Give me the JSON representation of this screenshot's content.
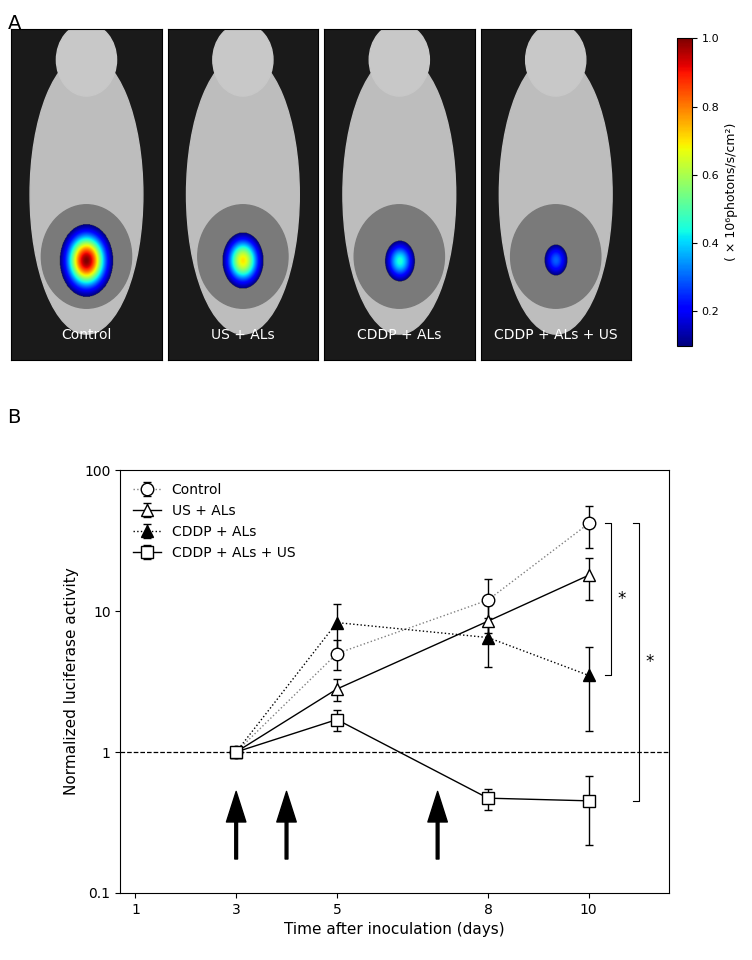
{
  "chart_data": [
    {
      "type": "image",
      "panel": "A",
      "panels": [
        {
          "label": "Control",
          "signal": 1.0
        },
        {
          "label": "US + ALs",
          "signal": 0.7
        },
        {
          "label": "CDDP + ALs",
          "signal": 0.45
        },
        {
          "label": "CDDP + ALs + US",
          "signal": 0.3
        }
      ],
      "colorbar_label": "( × 10⁶photons/s/cm²)",
      "colorbar_range": [
        0.1,
        1.0
      ],
      "colorbar_ticks": [
        0.2,
        0.4,
        0.6,
        0.8,
        {
          "value": 1,
          "label": "1.0"
        }
      ]
    },
    {
      "type": "line",
      "panel": "B",
      "log": "y",
      "legend": "upper left",
      "x_label": "Time after inoculation (days)",
      "y_label": "Normalized luciferase activity",
      "x": [
        3,
        5,
        8,
        10
      ],
      "xlim": [
        0.7,
        11.6
      ],
      "xticks": [
        1,
        3,
        5,
        8,
        10
      ],
      "ylim": [
        0.1,
        100
      ],
      "yticks": [
        0.1,
        1,
        10,
        100
      ],
      "reference_line": 1,
      "treatment_days": [
        3,
        4,
        7
      ],
      "series": [
        {
          "name": "Control",
          "color": "#808080",
          "marker": "o_open",
          "line_style": "dotted",
          "values": [
            1,
            5,
            12,
            42
          ],
          "errors": [
            0,
            1.2,
            5,
            14
          ]
        },
        {
          "name": "US + ALs",
          "color": "#000000",
          "marker": "^_open",
          "line_style": "solid",
          "values": [
            1,
            2.8,
            8.5,
            18
          ],
          "errors": [
            0,
            0.5,
            2.5,
            6
          ]
        },
        {
          "name": "CDDP + ALs",
          "color": "#000000",
          "marker": "^_filled",
          "line_style": "dotted",
          "values": [
            1,
            8.3,
            6.5,
            3.5
          ],
          "errors": [
            0,
            3,
            2.5,
            2.1
          ]
        },
        {
          "name": "CDDP + ALs + US",
          "color": "#000000",
          "marker": "s_open",
          "line_style": "solid",
          "values": [
            1,
            1.7,
            0.47,
            0.45
          ],
          "errors": [
            0,
            0.3,
            0.08,
            0.23
          ]
        }
      ],
      "significance": [
        {
          "text": "*",
          "between": [
            "Control",
            "CDDP + ALs"
          ]
        },
        {
          "text": "*",
          "between": [
            "Control",
            "CDDP + ALs + US"
          ]
        }
      ]
    }
  ]
}
